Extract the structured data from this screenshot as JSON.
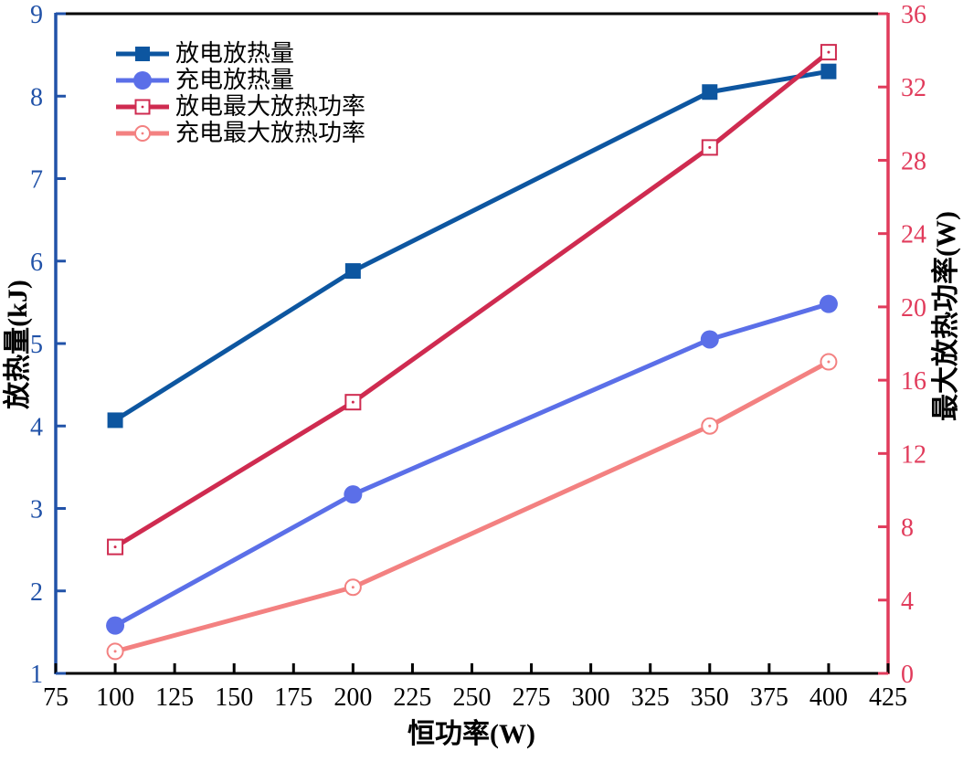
{
  "chart_data": {
    "type": "line",
    "title": "",
    "xlabel": "恒功率(W)",
    "ylabel_left": "放热量(kJ)",
    "ylabel_right": "最大放热功率(W)",
    "x": [
      100,
      200,
      350,
      400
    ],
    "xlim": [
      75,
      425
    ],
    "ylim_left": [
      1,
      9
    ],
    "ylim_right": [
      0,
      36
    ],
    "x_ticks": [
      75,
      100,
      125,
      150,
      175,
      200,
      225,
      250,
      275,
      300,
      325,
      350,
      375,
      400,
      425
    ],
    "left_ticks": [
      1,
      2,
      3,
      4,
      5,
      6,
      7,
      8,
      9
    ],
    "right_ticks": [
      0,
      4,
      8,
      12,
      16,
      20,
      24,
      28,
      32,
      36
    ],
    "grid": false,
    "legend_position": "upper-left-inside",
    "series": [
      {
        "name": "放电放热量",
        "axis": "left",
        "marker": "square-filled",
        "color": "#0D56A0",
        "values": [
          4.07,
          5.88,
          8.05,
          8.3
        ]
      },
      {
        "name": "充电放热量",
        "axis": "left",
        "marker": "circle-filled",
        "color": "#5B6FE8",
        "values": [
          1.58,
          3.17,
          5.05,
          5.48
        ]
      },
      {
        "name": "放电最大放热功率",
        "axis": "right",
        "marker": "square-open",
        "color": "#CF2B50",
        "values": [
          6.9,
          14.8,
          28.7,
          33.9
        ]
      },
      {
        "name": "充电最大放热功率",
        "axis": "right",
        "marker": "circle-open",
        "color": "#F38181",
        "values": [
          1.2,
          4.7,
          13.5,
          17.0
        ]
      }
    ],
    "colors": {
      "left_axis": "#2152A8",
      "right_axis": "#E13B5B",
      "bottom_axis": "#000000",
      "top_axis": "#000000",
      "tick_label_bottom": "#000000",
      "background": "#ffffff"
    }
  }
}
